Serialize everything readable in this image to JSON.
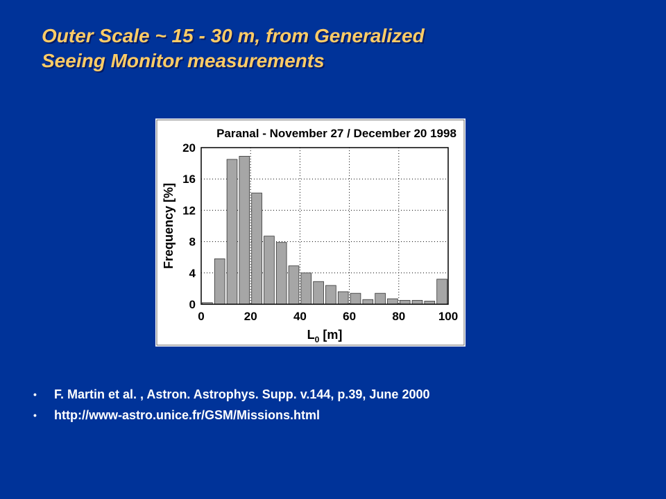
{
  "slide": {
    "title_line1": "Outer Scale ~ 15 - 30 m, from Generalized",
    "title_line2": "Seeing Monitor measurements",
    "bullet_icon": "bullet-dot-icon",
    "references": [
      "F. Martin et al. , Astron. Astrophys. Supp. v.144,  p.39, June 2000",
      "http://www-astro.unice.fr/GSM/Missions.html"
    ]
  },
  "colors": {
    "background": "#003399",
    "title": "#ffcc66",
    "bar": "#a6a6a6",
    "text": "#ffffff"
  },
  "chart_data": {
    "type": "bar",
    "title": "Paranal - November 27 / December 20 1998",
    "xlabel_main": "L",
    "xlabel_sub": "0",
    "xlabel_unit": " [m]",
    "ylabel": "Frequency [%]",
    "xlim": [
      0,
      100
    ],
    "ylim": [
      0,
      20
    ],
    "xticks": [
      0,
      20,
      40,
      60,
      80,
      100
    ],
    "yticks": [
      0,
      4,
      8,
      12,
      16,
      20
    ],
    "grid": "dotted",
    "bin_width": 5,
    "bins_start": [
      0,
      5,
      10,
      15,
      20,
      25,
      30,
      35,
      40,
      45,
      50,
      55,
      60,
      65,
      70,
      75,
      80,
      85,
      90,
      95
    ],
    "values": [
      0.2,
      5.8,
      18.5,
      18.9,
      14.2,
      8.7,
      7.9,
      4.9,
      4.0,
      2.9,
      2.4,
      1.6,
      1.4,
      0.6,
      1.4,
      0.7,
      0.5,
      0.5,
      0.4,
      3.2
    ]
  }
}
